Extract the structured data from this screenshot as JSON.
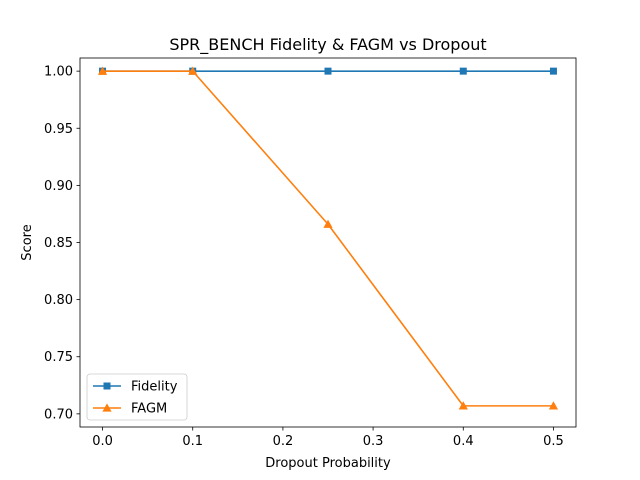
{
  "chart_data": {
    "type": "line",
    "title": "SPR_BENCH Fidelity & FAGM vs Dropout",
    "xlabel": "Dropout Probability",
    "ylabel": "Score",
    "x": [
      0.0,
      0.1,
      0.25,
      0.4,
      0.5
    ],
    "xlim": [
      -0.025,
      0.525
    ],
    "ylim": [
      0.6885,
      1.0115
    ],
    "xticks": [
      0.0,
      0.1,
      0.2,
      0.3,
      0.4,
      0.5
    ],
    "xtick_labels": [
      "0.0",
      "0.1",
      "0.2",
      "0.3",
      "0.4",
      "0.5"
    ],
    "yticks": [
      0.7,
      0.75,
      0.8,
      0.85,
      0.9,
      0.95,
      1.0
    ],
    "ytick_labels": [
      "0.70",
      "0.75",
      "0.80",
      "0.85",
      "0.90",
      "0.95",
      "1.00"
    ],
    "grid": false,
    "legend_position": "lower-left",
    "series": [
      {
        "name": "Fidelity",
        "values": [
          1.0,
          1.0,
          1.0,
          1.0,
          1.0
        ],
        "color": "#1f77b4",
        "marker": "square"
      },
      {
        "name": "FAGM",
        "values": [
          1.0,
          1.0,
          0.866,
          0.707,
          0.707
        ],
        "color": "#ff7f0e",
        "marker": "triangle"
      }
    ]
  }
}
